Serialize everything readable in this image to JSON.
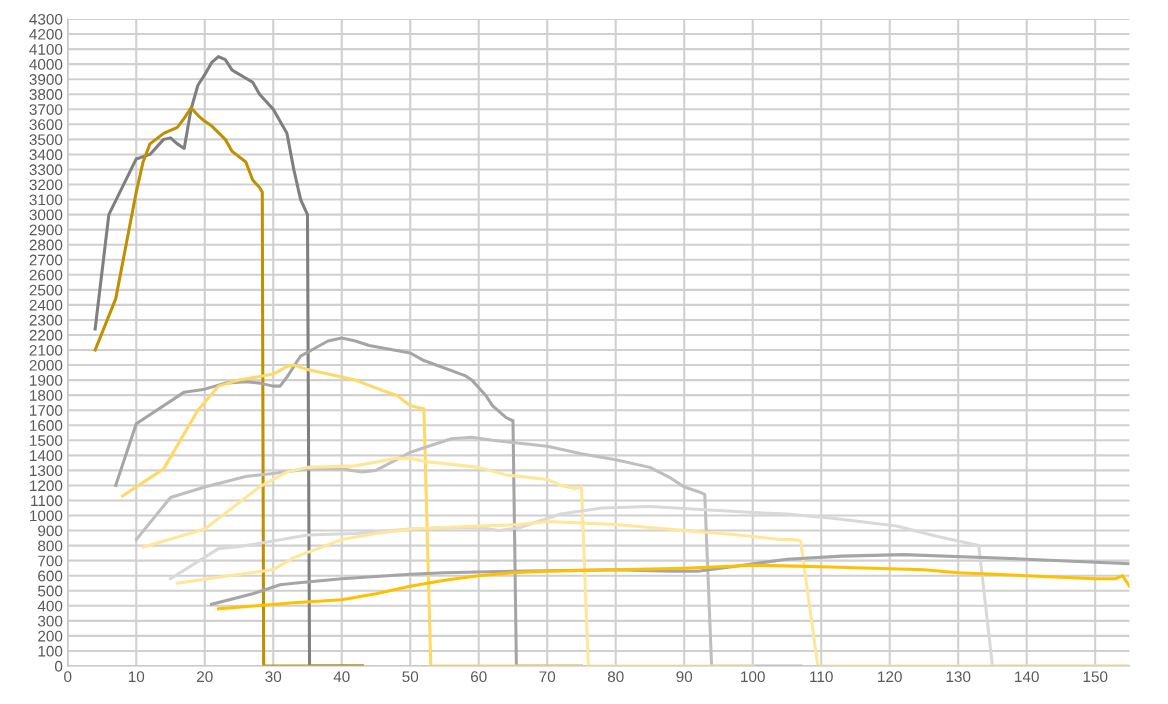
{
  "chart_data": {
    "type": "line",
    "xlim": [
      0,
      155
    ],
    "ylim": [
      0,
      4300
    ],
    "xticks": [
      0,
      10,
      20,
      30,
      40,
      50,
      60,
      70,
      80,
      90,
      100,
      110,
      120,
      130,
      140,
      150
    ],
    "yticks": [
      0,
      100,
      200,
      300,
      400,
      500,
      600,
      700,
      800,
      900,
      1000,
      1100,
      1200,
      1300,
      1400,
      1500,
      1600,
      1700,
      1800,
      1900,
      2000,
      2100,
      2200,
      2300,
      2400,
      2500,
      2600,
      2700,
      2800,
      2900,
      3000,
      3100,
      3200,
      3300,
      3400,
      3500,
      3600,
      3700,
      3800,
      3900,
      4000,
      4100,
      4200,
      4300
    ],
    "grid": true,
    "marker": "none",
    "line_style": "solid",
    "series": [
      {
        "color": "#7f7f7f",
        "x": [
          4,
          6,
          10,
          12,
          14,
          15,
          16,
          17,
          18,
          19,
          20,
          21,
          22,
          23,
          24,
          27,
          28,
          30,
          32,
          33,
          34,
          35,
          35.3,
          43
        ],
        "values": [
          2240,
          3000,
          3370,
          3400,
          3500,
          3510,
          3470,
          3440,
          3700,
          3860,
          3930,
          4010,
          4050,
          4030,
          3960,
          3880,
          3800,
          3700,
          3540,
          3300,
          3100,
          3000,
          0,
          0
        ]
      },
      {
        "color": "#bf9000",
        "x": [
          4,
          7,
          10,
          11,
          12,
          14,
          16,
          17,
          18,
          19,
          20,
          21,
          23,
          24,
          26,
          27,
          28,
          28.4,
          28.6,
          43
        ],
        "values": [
          2100,
          2440,
          3150,
          3350,
          3470,
          3540,
          3580,
          3640,
          3710,
          3660,
          3620,
          3590,
          3500,
          3420,
          3350,
          3230,
          3180,
          3150,
          0,
          0
        ]
      },
      {
        "color": "#a5a5a5",
        "x": [
          7,
          10,
          12,
          17,
          20,
          23,
          26,
          28,
          30,
          31,
          32,
          34,
          36,
          38,
          40,
          42,
          44,
          50,
          52,
          58,
          59,
          61,
          62,
          64,
          65,
          65.5,
          75
        ],
        "values": [
          1200,
          1610,
          1670,
          1820,
          1840,
          1880,
          1890,
          1880,
          1860,
          1860,
          1920,
          2060,
          2110,
          2160,
          2180,
          2160,
          2130,
          2080,
          2030,
          1930,
          1900,
          1800,
          1730,
          1650,
          1630,
          0,
          0
        ]
      },
      {
        "color": "#ffd966",
        "x": [
          8,
          14,
          19,
          22,
          25,
          30,
          32,
          33,
          35,
          38,
          42,
          46,
          48,
          50,
          52,
          53,
          75
        ],
        "values": [
          1130,
          1310,
          1700,
          1860,
          1900,
          1940,
          1990,
          2000,
          1970,
          1940,
          1900,
          1830,
          1800,
          1730,
          1710,
          0,
          0
        ]
      },
      {
        "color": "#bfbfbf",
        "x": [
          10,
          15,
          20,
          26,
          30,
          35,
          40,
          43,
          45,
          50,
          52,
          56,
          59,
          62,
          70,
          75,
          80,
          85,
          88,
          90,
          92,
          93,
          94,
          107
        ],
        "values": [
          840,
          1120,
          1190,
          1260,
          1280,
          1310,
          1310,
          1290,
          1300,
          1420,
          1450,
          1510,
          1520,
          1500,
          1460,
          1410,
          1370,
          1320,
          1250,
          1190,
          1160,
          1140,
          0,
          0
        ]
      },
      {
        "color": "#ffe699",
        "x": [
          11,
          20,
          28,
          32,
          35,
          42,
          48,
          50,
          52,
          56,
          60,
          64,
          70,
          72,
          74,
          75,
          76,
          100
        ],
        "values": [
          790,
          910,
          1190,
          1290,
          1320,
          1330,
          1380,
          1380,
          1360,
          1340,
          1320,
          1270,
          1240,
          1200,
          1180,
          1190,
          0,
          0
        ]
      },
      {
        "color": "#d9d9d9",
        "x": [
          15,
          22,
          26,
          30,
          35,
          42,
          50,
          56,
          60,
          63,
          66,
          72,
          78,
          85,
          100,
          105,
          112,
          121,
          127,
          131,
          133,
          135,
          155
        ],
        "values": [
          580,
          780,
          800,
          830,
          870,
          880,
          910,
          920,
          920,
          900,
          920,
          1010,
          1050,
          1060,
          1020,
          1010,
          980,
          930,
          860,
          820,
          800,
          0,
          0
        ]
      },
      {
        "color": "#ffe699",
        "x": [
          16,
          22,
          30,
          33,
          40,
          45,
          50,
          60,
          66,
          70,
          80,
          90,
          98,
          102,
          104,
          106,
          107,
          109.5,
          155
        ],
        "values": [
          550,
          590,
          640,
          720,
          840,
          880,
          910,
          930,
          940,
          960,
          940,
          900,
          870,
          850,
          840,
          840,
          830,
          0,
          0
        ]
      },
      {
        "color": "#a5a5a5",
        "x": [
          21,
          27,
          31,
          33,
          40,
          50,
          55,
          65,
          80,
          88,
          92,
          97,
          105,
          113,
          122,
          140,
          155
        ],
        "values": [
          410,
          480,
          540,
          550,
          580,
          610,
          620,
          630,
          640,
          630,
          630,
          660,
          710,
          730,
          740,
          710,
          680
        ]
      },
      {
        "color": "#ffc000",
        "x": [
          22,
          33,
          40,
          45,
          50,
          55,
          60,
          65,
          70,
          90,
          100,
          110,
          125,
          130,
          140,
          150,
          153,
          154,
          155
        ],
        "values": [
          380,
          420,
          440,
          480,
          530,
          570,
          600,
          620,
          630,
          650,
          670,
          660,
          640,
          620,
          600,
          580,
          580,
          600,
          530
        ]
      }
    ]
  }
}
